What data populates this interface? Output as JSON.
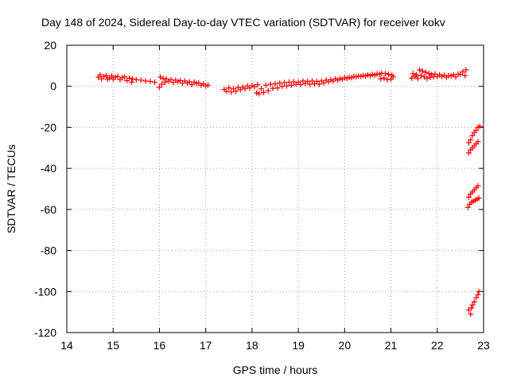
{
  "chart_data": {
    "type": "scatter",
    "title": "Day 148 of 2024, Sidereal Day-to-day VTEC variation (SDTVAR) for receiver kokv",
    "xlabel": "GPS time / hours",
    "ylabel": "SDTVAR / TECUs",
    "xlim": [
      14,
      23
    ],
    "ylim": [
      -120,
      20
    ],
    "x_ticks": [
      "14",
      "15",
      "16",
      "17",
      "18",
      "19",
      "20",
      "21",
      "22",
      "23"
    ],
    "y_ticks": [
      "20",
      "0",
      "-20",
      "-40",
      "-60",
      "-80",
      "-100",
      "-120"
    ],
    "grid": true,
    "marker": "plus",
    "color": "#ff0000",
    "series": [
      {
        "values": [
          [
            14.68,
            4.5
          ],
          [
            14.72,
            5.6
          ],
          [
            14.75,
            3.6
          ],
          [
            14.8,
            4.8
          ],
          [
            14.85,
            5.2
          ],
          [
            14.88,
            3.4
          ],
          [
            14.92,
            4.1
          ],
          [
            14.97,
            5.0
          ],
          [
            15.0,
            3.5
          ],
          [
            15.05,
            4.4
          ],
          [
            15.1,
            4.8
          ],
          [
            15.15,
            3.2
          ],
          [
            15.2,
            4.2
          ],
          [
            15.25,
            4.6
          ],
          [
            15.3,
            2.8
          ],
          [
            15.35,
            4.0
          ],
          [
            15.4,
            2.0
          ],
          [
            15.42,
            3.6
          ],
          [
            15.5,
            3.2
          ],
          [
            15.6,
            3.0
          ],
          [
            15.7,
            2.6
          ],
          [
            15.8,
            2.4
          ],
          [
            15.9,
            2.0
          ],
          [
            16.0,
            -0.5
          ],
          [
            16.02,
            4.5
          ],
          [
            16.05,
            1.0
          ],
          [
            16.08,
            3.8
          ],
          [
            16.12,
            2.0
          ],
          [
            16.15,
            3.6
          ],
          [
            16.2,
            2.5
          ],
          [
            16.25,
            3.2
          ],
          [
            16.3,
            1.8
          ],
          [
            16.35,
            3.0
          ],
          [
            16.4,
            2.2
          ],
          [
            16.45,
            2.8
          ],
          [
            16.5,
            1.5
          ],
          [
            16.55,
            2.6
          ],
          [
            16.6,
            1.6
          ],
          [
            16.65,
            2.2
          ],
          [
            16.7,
            0.8
          ],
          [
            16.75,
            2.0
          ],
          [
            16.8,
            1.4
          ],
          [
            16.85,
            1.6
          ],
          [
            16.9,
            0.5
          ],
          [
            16.95,
            1.2
          ],
          [
            17.0,
            0.2
          ],
          [
            17.05,
            0.6
          ],
          [
            17.4,
            -1.5
          ],
          [
            17.45,
            -2.5
          ],
          [
            17.5,
            -0.8
          ],
          [
            17.55,
            -2.8
          ],
          [
            17.6,
            -1.2
          ],
          [
            17.65,
            -2.4
          ],
          [
            17.7,
            -0.6
          ],
          [
            17.75,
            -1.6
          ],
          [
            17.8,
            -0.4
          ],
          [
            17.85,
            -1.2
          ],
          [
            17.9,
            0.2
          ],
          [
            17.95,
            -0.8
          ],
          [
            18.0,
            0.4
          ],
          [
            18.05,
            -0.2
          ],
          [
            18.1,
            -3.2
          ],
          [
            18.12,
            0.8
          ],
          [
            18.15,
            -3.6
          ],
          [
            18.2,
            -1.2
          ],
          [
            18.25,
            -3.0
          ],
          [
            18.3,
            0.5
          ],
          [
            18.35,
            -2.2
          ],
          [
            18.4,
            1.0
          ],
          [
            18.45,
            -1.0
          ],
          [
            18.5,
            1.2
          ],
          [
            18.55,
            -0.8
          ],
          [
            18.6,
            1.6
          ],
          [
            18.65,
            0.0
          ],
          [
            18.7,
            1.8
          ],
          [
            18.75,
            0.2
          ],
          [
            18.8,
            2.0
          ],
          [
            18.85,
            0.5
          ],
          [
            18.9,
            2.2
          ],
          [
            18.95,
            1.0
          ],
          [
            19.0,
            2.0
          ],
          [
            19.05,
            0.8
          ],
          [
            19.1,
            2.6
          ],
          [
            19.15,
            1.4
          ],
          [
            19.2,
            2.4
          ],
          [
            19.25,
            1.0
          ],
          [
            19.3,
            2.6
          ],
          [
            19.35,
            1.2
          ],
          [
            19.4,
            2.4
          ],
          [
            19.45,
            1.0
          ],
          [
            19.5,
            2.6
          ],
          [
            19.55,
            1.6
          ],
          [
            19.6,
            3.0
          ],
          [
            19.65,
            2.2
          ],
          [
            19.7,
            3.2
          ],
          [
            19.75,
            2.6
          ],
          [
            19.8,
            3.6
          ],
          [
            19.85,
            3.0
          ],
          [
            19.9,
            3.8
          ],
          [
            19.95,
            3.4
          ],
          [
            20.0,
            4.2
          ],
          [
            20.05,
            3.8
          ],
          [
            20.1,
            4.4
          ],
          [
            20.15,
            4.2
          ],
          [
            20.2,
            4.8
          ],
          [
            20.25,
            4.6
          ],
          [
            20.3,
            5.0
          ],
          [
            20.35,
            4.8
          ],
          [
            20.4,
            5.2
          ],
          [
            20.45,
            5.0
          ],
          [
            20.5,
            5.6
          ],
          [
            20.55,
            5.2
          ],
          [
            20.6,
            5.8
          ],
          [
            20.65,
            5.4
          ],
          [
            20.7,
            6.0
          ],
          [
            20.75,
            5.8
          ],
          [
            20.78,
            3.6
          ],
          [
            20.8,
            6.4
          ],
          [
            20.85,
            4.0
          ],
          [
            20.88,
            6.2
          ],
          [
            20.92,
            3.2
          ],
          [
            20.95,
            5.8
          ],
          [
            21.0,
            3.4
          ],
          [
            21.02,
            5.4
          ],
          [
            21.05,
            4.6
          ],
          [
            21.45,
            4.0
          ],
          [
            21.48,
            6.2
          ],
          [
            21.52,
            4.8
          ],
          [
            21.55,
            5.6
          ],
          [
            21.58,
            3.8
          ],
          [
            21.62,
            8.0
          ],
          [
            21.65,
            5.2
          ],
          [
            21.68,
            7.4
          ],
          [
            21.72,
            4.6
          ],
          [
            21.75,
            6.8
          ],
          [
            21.78,
            3.8
          ],
          [
            21.82,
            6.2
          ],
          [
            21.85,
            4.4
          ],
          [
            21.88,
            5.8
          ],
          [
            21.92,
            4.6
          ],
          [
            21.95,
            6.0
          ],
          [
            22.0,
            4.8
          ],
          [
            22.05,
            5.6
          ],
          [
            22.1,
            4.8
          ],
          [
            22.15,
            5.4
          ],
          [
            22.2,
            4.4
          ],
          [
            22.25,
            5.2
          ],
          [
            22.3,
            5.0
          ],
          [
            22.35,
            5.6
          ],
          [
            22.4,
            4.6
          ],
          [
            22.45,
            6.0
          ],
          [
            22.5,
            5.8
          ],
          [
            22.55,
            7.0
          ],
          [
            22.6,
            5.2
          ],
          [
            22.62,
            8.0
          ],
          [
            22.68,
            -27.5
          ],
          [
            22.72,
            -26.0
          ],
          [
            22.76,
            -24.0
          ],
          [
            22.8,
            -22.5
          ],
          [
            22.84,
            -21.5
          ],
          [
            22.88,
            -20.0
          ],
          [
            22.92,
            -19.5
          ],
          [
            22.68,
            -32.5
          ],
          [
            22.72,
            -31.0
          ],
          [
            22.76,
            -30.0
          ],
          [
            22.8,
            -29.0
          ],
          [
            22.84,
            -28.0
          ],
          [
            22.88,
            -27.0
          ],
          [
            22.68,
            -54.0
          ],
          [
            22.72,
            -52.5
          ],
          [
            22.76,
            -51.5
          ],
          [
            22.8,
            -50.5
          ],
          [
            22.84,
            -49.5
          ],
          [
            22.88,
            -48.5
          ],
          [
            22.66,
            -59.0
          ],
          [
            22.7,
            -57.5
          ],
          [
            22.74,
            -56.5
          ],
          [
            22.78,
            -56.0
          ],
          [
            22.82,
            -55.5
          ],
          [
            22.86,
            -55.0
          ],
          [
            22.9,
            -54.5
          ],
          [
            22.68,
            -109.0
          ],
          [
            22.72,
            -111.0
          ],
          [
            22.74,
            -108.0
          ],
          [
            22.76,
            -106.5
          ],
          [
            22.8,
            -105.0
          ],
          [
            22.84,
            -103.0
          ],
          [
            22.88,
            -101.5
          ],
          [
            22.9,
            -100.0
          ]
        ]
      }
    ]
  }
}
